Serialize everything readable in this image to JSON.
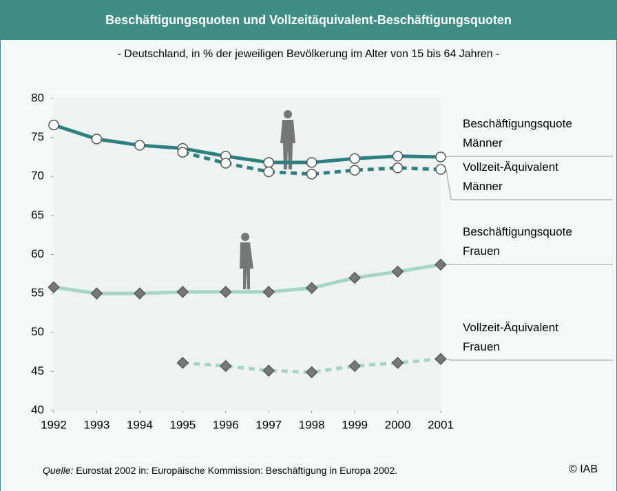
{
  "chart_data": {
    "type": "line",
    "title": "Beschäftigungsquoten und Vollzeitäquivalent-Beschäftigungsquoten",
    "subtitle": "- Deutschland, in % der jeweiligen Bevölkerung im Alter von 15 bis 64 Jahren  -",
    "x": [
      1992,
      1993,
      1994,
      1995,
      1996,
      1997,
      1998,
      1999,
      2000,
      2001
    ],
    "xlim": [
      1992,
      2001
    ],
    "xticks": [
      1992,
      1993,
      1994,
      1995,
      1996,
      1997,
      1998,
      1999,
      2000,
      2001
    ],
    "ylim": [
      40,
      80
    ],
    "yticks": [
      40,
      45,
      50,
      55,
      60,
      65,
      70,
      75,
      80
    ],
    "series": [
      {
        "name": "Beschäftigungsquote Männer",
        "color": "#2e8080",
        "marker": "circle",
        "dashed": false,
        "values": [
          76.6,
          74.8,
          74.0,
          73.6,
          72.6,
          71.8,
          71.8,
          72.3,
          72.6,
          72.5
        ]
      },
      {
        "name": "Vollzeit-Äquivalent Männer",
        "color": "#2e8080",
        "marker": "circle",
        "dashed": true,
        "values": [
          null,
          null,
          null,
          73.1,
          71.7,
          70.6,
          70.3,
          70.8,
          71.1,
          70.9
        ]
      },
      {
        "name": "Beschäftigungsquote Frauen",
        "color": "#a6d4c6",
        "marker": "diamond",
        "dashed": false,
        "values": [
          55.8,
          55.0,
          55.0,
          55.2,
          55.2,
          55.2,
          55.7,
          57.0,
          57.8,
          58.7
        ]
      },
      {
        "name": "Vollzeit-Äquivalent Frauen",
        "color": "#a6d4c6",
        "marker": "diamond",
        "dashed": true,
        "values": [
          null,
          null,
          null,
          46.1,
          45.7,
          45.1,
          44.9,
          45.7,
          46.1,
          46.6
        ]
      }
    ],
    "source_label": "Quelle:",
    "source": "Eurostat 2002 in: Europäische Kommission: Beschäftigung in Europa 2002.",
    "copyright": "© IAB"
  }
}
